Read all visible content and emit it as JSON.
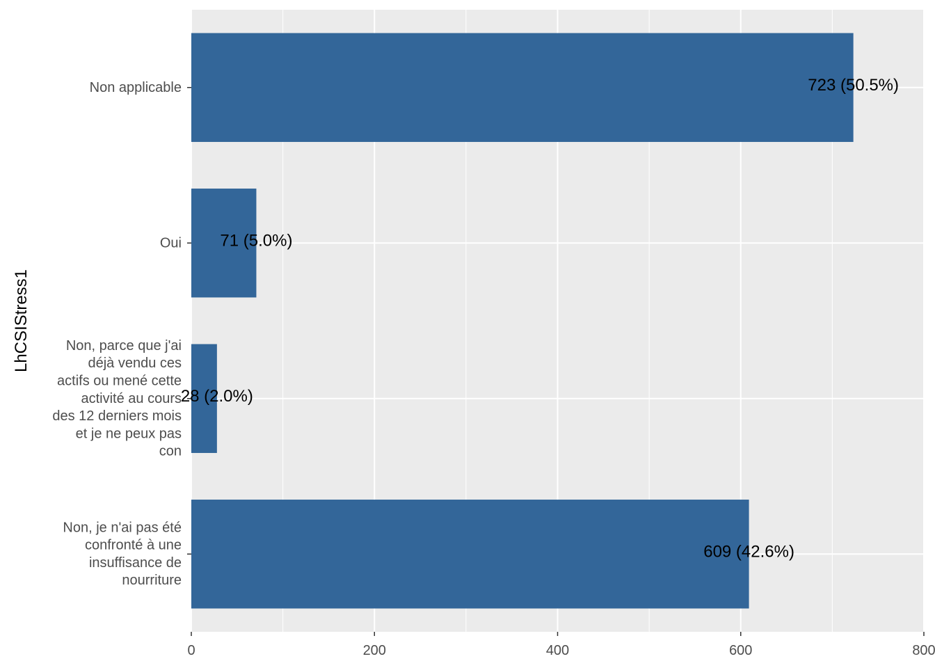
{
  "chart_data": {
    "type": "bar",
    "orientation": "horizontal",
    "title": "",
    "xlabel": "",
    "ylabel": "LhCSIStress1",
    "xlim": [
      0,
      800
    ],
    "xticks": [
      0,
      200,
      400,
      600,
      800
    ],
    "grid": true,
    "legend": "none",
    "bar_color": "#336699",
    "panel_color": "#ebebeb",
    "grid_color": "#ffffff",
    "categories": [
      {
        "label_lines": [
          "Non applicable"
        ],
        "value": 723,
        "data_label": "723 (50.5%)"
      },
      {
        "label_lines": [
          "Oui"
        ],
        "value": 71,
        "data_label": "71 (5.0%)"
      },
      {
        "label_lines": [
          "Non, parce que j'ai",
          "déjà vendu ces",
          "actifs ou mené cette",
          "activité au cours",
          "des 12 derniers mois",
          "et je ne peux pas",
          "con"
        ],
        "value": 28,
        "data_label": "28 (2.0%)"
      },
      {
        "label_lines": [
          "Non, je n'ai pas été",
          "confronté à une",
          "insuffisance de",
          "nourriture"
        ],
        "value": 609,
        "data_label": "609 (42.6%)"
      }
    ]
  }
}
